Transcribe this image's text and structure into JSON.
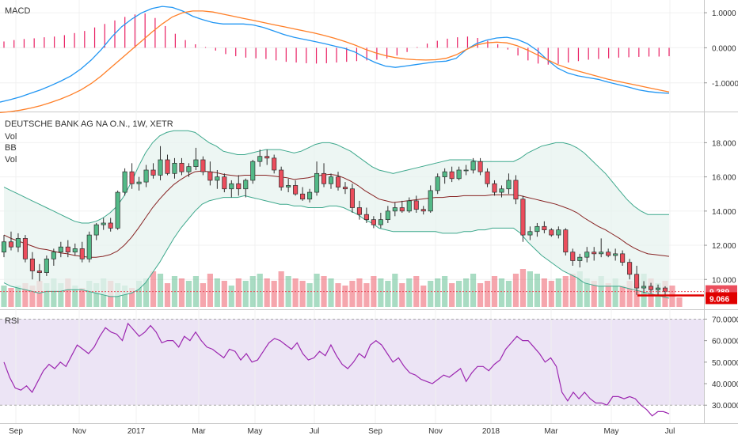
{
  "chart_data": [
    {
      "panel": "macd",
      "type": "line",
      "title": "MACD",
      "y_ticks": [
        "1.0000",
        "0.0000",
        "-1.0000"
      ],
      "ylim": [
        -1.75,
        1.25
      ],
      "series": [
        {
          "color": "#2196f3",
          "values": [
            -1.55,
            -1.48,
            -1.4,
            -1.3,
            -1.2,
            -1.08,
            -0.95,
            -0.8,
            -0.6,
            -0.35,
            -0.05,
            0.3,
            0.6,
            0.82,
            1.0,
            1.12,
            1.18,
            1.15,
            1.05,
            0.9,
            0.8,
            0.72,
            0.68,
            0.68,
            0.68,
            0.65,
            0.58,
            0.48,
            0.38,
            0.3,
            0.24,
            0.18,
            0.12,
            0.05,
            -0.02,
            -0.12,
            -0.28,
            -0.42,
            -0.52,
            -0.56,
            -0.52,
            -0.48,
            -0.44,
            -0.4,
            -0.38,
            -0.3,
            -0.05,
            0.12,
            0.22,
            0.28,
            0.3,
            0.24,
            0.12,
            -0.08,
            -0.35,
            -0.58,
            -0.72,
            -0.8,
            -0.85,
            -0.9,
            -0.98,
            -1.05,
            -1.12,
            -1.2,
            -1.25,
            -1.28,
            -1.3
          ]
        },
        {
          "color": "#ff7f27",
          "values": [
            -1.85,
            -1.82,
            -1.78,
            -1.72,
            -1.65,
            -1.56,
            -1.46,
            -1.34,
            -1.2,
            -1.02,
            -0.8,
            -0.55,
            -0.3,
            -0.05,
            0.2,
            0.45,
            0.68,
            0.88,
            1.0,
            1.05,
            1.05,
            1.02,
            0.96,
            0.9,
            0.84,
            0.78,
            0.72,
            0.66,
            0.6,
            0.54,
            0.48,
            0.42,
            0.35,
            0.27,
            0.18,
            0.08,
            -0.04,
            -0.14,
            -0.22,
            -0.28,
            -0.32,
            -0.34,
            -0.35,
            -0.34,
            -0.3,
            -0.2,
            -0.05,
            0.08,
            0.14,
            0.16,
            0.14,
            0.06,
            -0.06,
            -0.2,
            -0.34,
            -0.48,
            -0.58,
            -0.66,
            -0.74,
            -0.82,
            -0.9,
            -0.96,
            -1.02,
            -1.08,
            -1.14,
            -1.2,
            -1.26
          ]
        }
      ],
      "histogram": {
        "color": "#e91e63",
        "values": [
          0.18,
          0.22,
          0.25,
          0.27,
          0.3,
          0.32,
          0.36,
          0.42,
          0.48,
          0.58,
          0.68,
          0.78,
          0.88,
          0.95,
          0.98,
          0.85,
          0.62,
          0.4,
          0.22,
          0.1,
          0.02,
          -0.08,
          -0.18,
          -0.24,
          -0.28,
          -0.3,
          -0.32,
          -0.36,
          -0.4,
          -0.42,
          -0.44,
          -0.45,
          -0.44,
          -0.42,
          -0.4,
          -0.38,
          -0.36,
          -0.34,
          -0.3,
          -0.22,
          -0.12,
          0.02,
          0.12,
          0.2,
          0.26,
          0.3,
          0.32,
          0.28,
          0.2,
          0.1,
          -0.05,
          -0.22,
          -0.36,
          -0.45,
          -0.48,
          -0.46,
          -0.42,
          -0.38,
          -0.34,
          -0.32,
          -0.3,
          -0.28,
          -0.27,
          -0.26,
          -0.25,
          -0.25,
          -0.24
        ]
      }
    },
    {
      "panel": "price",
      "type": "candlestick",
      "title": "DEUTSCHE BANK AG NA O.N., 1W, XETR",
      "legend": [
        "Vol",
        "BB",
        "Vol"
      ],
      "y_ticks": [
        "18.000",
        "16.000",
        "14.000",
        "12.000",
        "10.000"
      ],
      "ylim": [
        8.3,
        19.5
      ],
      "x_ticks": [
        "Sep",
        "Nov",
        "2017",
        "Mar",
        "May",
        "Jul",
        "Sep",
        "Nov",
        "2018",
        "Mar",
        "May",
        "Jul"
      ],
      "last_price_labels": [
        {
          "text": "9.289",
          "value": 9.289
        },
        {
          "text": "9.066",
          "value": 9.066
        }
      ],
      "colors": {
        "up": "#53b987",
        "down": "#eb4d5c",
        "bb_basis": "#872323",
        "bb_band": "#3da88c",
        "bb_fill": "#e7f3ef"
      },
      "candles": [
        [
          11.6,
          12.6,
          11.3,
          12.2
        ],
        [
          12.2,
          12.8,
          11.7,
          11.9
        ],
        [
          11.9,
          12.7,
          11.6,
          12.4
        ],
        [
          12.4,
          12.6,
          11.0,
          11.2
        ],
        [
          11.2,
          11.6,
          10.0,
          10.5
        ],
        [
          10.5,
          10.9,
          9.9,
          10.4
        ],
        [
          10.4,
          11.4,
          10.2,
          11.2
        ],
        [
          11.2,
          11.8,
          10.8,
          11.6
        ],
        [
          11.6,
          12.2,
          11.3,
          11.9
        ],
        [
          11.9,
          12.3,
          11.3,
          11.6
        ],
        [
          11.6,
          12.1,
          11.4,
          11.8
        ],
        [
          11.8,
          12.2,
          11.0,
          11.2
        ],
        [
          11.2,
          12.8,
          11.0,
          12.6
        ],
        [
          12.6,
          13.3,
          12.3,
          13.2
        ],
        [
          13.2,
          13.6,
          12.9,
          13.3
        ],
        [
          13.3,
          13.6,
          12.8,
          13.0
        ],
        [
          13.0,
          15.2,
          12.9,
          15.1
        ],
        [
          15.1,
          16.5,
          14.9,
          16.3
        ],
        [
          16.3,
          16.8,
          15.3,
          15.6
        ],
        [
          15.6,
          16.0,
          15.2,
          15.7
        ],
        [
          15.7,
          16.7,
          15.4,
          16.4
        ],
        [
          16.4,
          16.8,
          15.9,
          16.1
        ],
        [
          16.1,
          17.8,
          15.8,
          17.0
        ],
        [
          17.0,
          17.3,
          16.1,
          16.2
        ],
        [
          16.2,
          17.1,
          15.9,
          16.8
        ],
        [
          16.8,
          17.1,
          16.1,
          16.3
        ],
        [
          16.3,
          16.8,
          16.0,
          16.6
        ],
        [
          16.6,
          17.7,
          16.4,
          17.0
        ],
        [
          17.0,
          17.2,
          16.1,
          16.3
        ],
        [
          16.3,
          16.9,
          15.5,
          15.8
        ],
        [
          15.8,
          16.4,
          15.3,
          16.0
        ],
        [
          16.0,
          16.2,
          15.1,
          15.3
        ],
        [
          15.3,
          15.8,
          14.8,
          15.6
        ],
        [
          15.6,
          16.1,
          14.9,
          15.3
        ],
        [
          15.3,
          15.9,
          14.8,
          15.8
        ],
        [
          15.8,
          17.0,
          15.6,
          16.9
        ],
        [
          16.9,
          17.6,
          16.6,
          17.2
        ],
        [
          17.2,
          17.6,
          16.7,
          17.1
        ],
        [
          17.1,
          17.3,
          16.2,
          16.4
        ],
        [
          16.4,
          16.6,
          15.2,
          15.4
        ],
        [
          15.4,
          15.9,
          15.1,
          15.5
        ],
        [
          15.5,
          15.8,
          14.9,
          15.0
        ],
        [
          15.0,
          15.4,
          14.6,
          14.7
        ],
        [
          14.7,
          15.3,
          14.5,
          15.1
        ],
        [
          15.1,
          16.9,
          14.9,
          16.2
        ],
        [
          16.2,
          16.8,
          15.4,
          15.6
        ],
        [
          15.6,
          16.2,
          15.3,
          16.0
        ],
        [
          16.0,
          16.3,
          15.2,
          15.4
        ],
        [
          15.4,
          15.7,
          15.0,
          15.3
        ],
        [
          15.3,
          15.6,
          13.9,
          14.2
        ],
        [
          14.2,
          14.6,
          13.5,
          13.8
        ],
        [
          13.8,
          14.2,
          13.3,
          13.5
        ],
        [
          13.5,
          13.7,
          13.0,
          13.2
        ],
        [
          13.2,
          13.9,
          13.0,
          13.5
        ],
        [
          13.5,
          14.3,
          13.3,
          14.0
        ],
        [
          14.0,
          14.5,
          13.7,
          14.2
        ],
        [
          14.2,
          14.6,
          13.9,
          14.0
        ],
        [
          14.0,
          14.8,
          13.9,
          14.6
        ],
        [
          14.6,
          14.9,
          13.9,
          14.1
        ],
        [
          14.1,
          14.3,
          13.8,
          14.0
        ],
        [
          14.0,
          15.5,
          13.9,
          15.2
        ],
        [
          15.2,
          16.2,
          15.0,
          16.0
        ],
        [
          16.0,
          16.5,
          15.6,
          16.3
        ],
        [
          16.3,
          16.6,
          15.7,
          15.9
        ],
        [
          15.9,
          16.6,
          15.8,
          16.4
        ],
        [
          16.4,
          16.7,
          16.1,
          16.4
        ],
        [
          16.4,
          17.1,
          16.2,
          16.9
        ],
        [
          16.9,
          17.1,
          16.1,
          16.3
        ],
        [
          16.3,
          16.5,
          15.4,
          15.6
        ],
        [
          15.6,
          15.8,
          14.9,
          15.1
        ],
        [
          15.1,
          15.5,
          14.8,
          15.3
        ],
        [
          15.3,
          16.2,
          15.0,
          15.8
        ],
        [
          15.8,
          16.1,
          14.4,
          14.7
        ],
        [
          14.7,
          14.9,
          12.2,
          12.6
        ],
        [
          12.6,
          13.1,
          12.3,
          12.8
        ],
        [
          12.8,
          13.3,
          12.5,
          13.1
        ],
        [
          13.1,
          13.4,
          12.7,
          12.9
        ],
        [
          12.9,
          13.0,
          12.5,
          12.6
        ],
        [
          12.6,
          13.1,
          12.4,
          12.9
        ],
        [
          12.9,
          13.0,
          11.4,
          11.6
        ],
        [
          11.6,
          11.8,
          10.8,
          11.1
        ],
        [
          11.1,
          11.5,
          10.7,
          11.3
        ],
        [
          11.3,
          11.9,
          11.0,
          11.6
        ],
        [
          11.6,
          11.9,
          11.1,
          11.5
        ],
        [
          11.5,
          12.4,
          11.3,
          11.6
        ],
        [
          11.6,
          11.8,
          11.3,
          11.4
        ],
        [
          11.4,
          11.8,
          11.1,
          11.5
        ],
        [
          11.5,
          11.7,
          10.8,
          11.0
        ],
        [
          11.0,
          11.2,
          10.0,
          10.3
        ],
        [
          10.3,
          10.8,
          9.1,
          9.5
        ],
        [
          9.5,
          9.9,
          9.2,
          9.6
        ],
        [
          9.6,
          9.8,
          9.2,
          9.4
        ],
        [
          9.4,
          9.7,
          9.1,
          9.5
        ],
        [
          9.5,
          9.6,
          9.0,
          9.3
        ]
      ],
      "bb_upper": [
        15.4,
        15.2,
        15.0,
        14.8,
        14.6,
        14.4,
        14.2,
        14.0,
        13.8,
        13.6,
        13.4,
        13.3,
        13.3,
        13.4,
        13.6,
        13.9,
        14.3,
        14.9,
        15.7,
        16.6,
        17.4,
        18.0,
        18.4,
        18.6,
        18.7,
        18.7,
        18.7,
        18.6,
        18.3,
        18.0,
        17.8,
        17.5,
        17.4,
        17.3,
        17.3,
        17.4,
        17.5,
        17.6,
        17.6,
        17.6,
        17.5,
        17.4,
        17.5,
        17.7,
        17.9,
        18.0,
        18.0,
        17.9,
        17.7,
        17.5,
        17.2,
        16.9,
        16.6,
        16.4,
        16.3,
        16.2,
        16.3,
        16.4,
        16.5,
        16.6,
        16.7,
        16.8,
        16.9,
        17.0,
        17.0,
        17.0,
        17.0,
        16.9,
        16.9,
        16.9,
        16.9,
        16.9,
        16.9,
        17.1,
        17.4,
        17.6,
        17.8,
        17.9,
        18.0,
        18.0,
        17.9,
        17.7,
        17.4,
        17.0,
        16.6,
        16.2,
        15.7,
        15.2,
        14.7,
        14.3,
        14.0,
        13.8,
        13.8,
        13.8,
        13.8
      ],
      "bb_lower": [
        9.8,
        9.6,
        9.5,
        9.4,
        9.3,
        9.2,
        9.3,
        9.3,
        9.3,
        9.4,
        9.4,
        9.4,
        9.3,
        9.2,
        9.1,
        9.0,
        9.0,
        9.1,
        9.2,
        9.4,
        9.8,
        10.4,
        11.0,
        11.7,
        12.4,
        13.0,
        13.5,
        14.0,
        14.4,
        14.6,
        14.7,
        14.8,
        14.8,
        14.8,
        14.9,
        14.8,
        14.7,
        14.6,
        14.5,
        14.4,
        14.4,
        14.3,
        14.3,
        14.2,
        14.2,
        14.2,
        14.3,
        14.3,
        14.2,
        14.0,
        13.8,
        13.5,
        13.3,
        13.0,
        12.9,
        12.8,
        12.8,
        12.8,
        12.8,
        12.8,
        12.8,
        12.8,
        12.7,
        12.7,
        12.7,
        12.8,
        12.8,
        12.9,
        12.9,
        13.0,
        13.0,
        13.0,
        13.0,
        12.7,
        12.2,
        11.8,
        11.4,
        11.1,
        10.8,
        10.5,
        10.3,
        10.1,
        9.8,
        9.7,
        9.6,
        9.6,
        9.6,
        9.6,
        9.5,
        9.4,
        9.3,
        9.2,
        9.1,
        9.0,
        8.9
      ]
    },
    {
      "panel": "volume",
      "type": "bar",
      "values": [
        9,
        8,
        9,
        10,
        9,
        11,
        10,
        12,
        10,
        12,
        9,
        8,
        11,
        10,
        12,
        11,
        10,
        9,
        8,
        11,
        12,
        15,
        14,
        10,
        13,
        12,
        11,
        13,
        10,
        14,
        12,
        11,
        9,
        12,
        11,
        13,
        14,
        12,
        11,
        15,
        13,
        12,
        11,
        10,
        14,
        13,
        12,
        10,
        9,
        11,
        12,
        10,
        13,
        12,
        11,
        14,
        10,
        12,
        13,
        9,
        11,
        12,
        13,
        10,
        11,
        12,
        14,
        10,
        11,
        13,
        12,
        11,
        14,
        16,
        15,
        14,
        12,
        11,
        12,
        13,
        14,
        15,
        12,
        11,
        13,
        10,
        12,
        9,
        11,
        10,
        14,
        12,
        10,
        11,
        9,
        4
      ]
    },
    {
      "panel": "rsi",
      "type": "line",
      "title": "RSI",
      "y_ticks": [
        "70.0000",
        "60.0000",
        "50.0000",
        "40.0000",
        "30.0000"
      ],
      "ylim": [
        22,
        72
      ],
      "series": [
        {
          "color": "#9c27b0",
          "values": [
            50,
            43,
            38,
            37,
            39,
            36,
            41,
            46,
            49,
            47,
            50,
            48,
            53,
            58,
            56,
            54,
            57,
            62,
            66,
            64,
            63,
            60,
            68,
            65,
            62,
            64,
            67,
            64,
            59,
            60,
            60,
            57,
            62,
            60,
            64,
            60,
            57,
            56,
            54,
            52,
            56,
            55,
            51,
            54,
            50,
            51,
            55,
            59,
            61,
            60,
            58,
            56,
            59,
            54,
            51,
            52,
            55,
            53,
            58,
            53,
            49,
            47,
            50,
            54,
            52,
            58,
            60,
            58,
            54,
            50,
            52,
            48,
            45,
            44,
            42,
            41,
            40,
            42,
            44,
            43,
            45,
            47,
            41,
            45,
            48,
            48,
            46,
            49,
            51,
            56,
            59,
            62,
            60,
            60,
            57,
            54,
            50,
            52,
            48,
            36,
            32,
            36,
            33,
            36,
            33,
            31,
            31,
            30,
            34,
            34,
            33,
            34,
            33,
            30,
            28,
            25,
            27,
            27,
            26
          ]
        }
      ]
    }
  ]
}
